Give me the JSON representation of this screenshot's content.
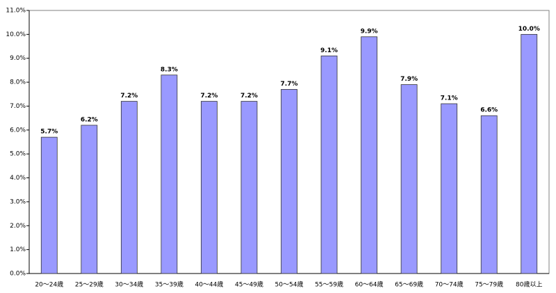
{
  "chart_data": {
    "type": "bar",
    "categories": [
      "20～24歳",
      "25～29歳",
      "30～34歳",
      "35～39歳",
      "40～44歳",
      "45～49歳",
      "50～54歳",
      "55～59歳",
      "60～64歳",
      "65～69歳",
      "70～74歳",
      "75～79歳",
      "80歳以上"
    ],
    "values": [
      5.7,
      6.2,
      7.2,
      8.3,
      7.2,
      7.2,
      7.7,
      9.1,
      9.9,
      7.9,
      7.1,
      6.6,
      10.0
    ],
    "value_labels": [
      "5.7%",
      "6.2%",
      "7.2%",
      "8.3%",
      "7.2%",
      "7.2%",
      "7.7%",
      "9.1%",
      "9.9%",
      "7.9%",
      "7.1%",
      "6.6%",
      "10.0%"
    ],
    "color": "#9999ff",
    "ylim": [
      0,
      11
    ],
    "yticks": [
      {
        "value": 0,
        "label": "0.0%"
      },
      {
        "value": 1,
        "label": "1.0%"
      },
      {
        "value": 2,
        "label": "2.0%"
      },
      {
        "value": 3,
        "label": "3.0%"
      },
      {
        "value": 4,
        "label": "4.0%"
      },
      {
        "value": 5,
        "label": "5.0%"
      },
      {
        "value": 6,
        "label": "6.0%"
      },
      {
        "value": 7,
        "label": "7.0%"
      },
      {
        "value": 8,
        "label": "8.0%"
      },
      {
        "value": 9,
        "label": "9.0%"
      },
      {
        "value": 10,
        "label": "10.0%"
      },
      {
        "value": 11,
        "label": "11.0%"
      }
    ],
    "grid": false
  }
}
